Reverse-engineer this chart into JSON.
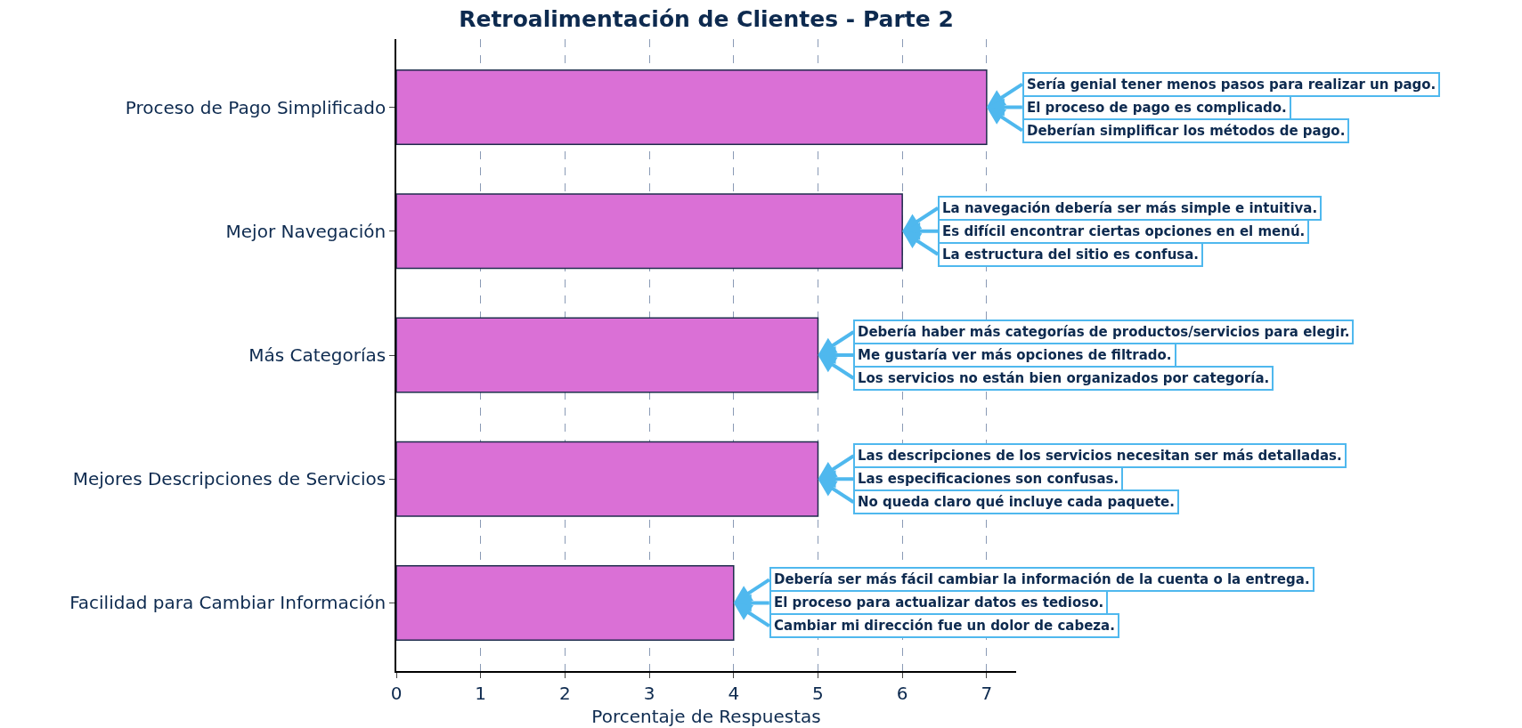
{
  "chart_data": {
    "type": "bar",
    "orientation": "horizontal",
    "title": "Retroalimentación de Clientes - Parte 2",
    "xlabel": "Porcentaje de Respuestas",
    "categories": [
      "Proceso de Pago Simplificado",
      "Mejor Navegación",
      "Más Categorías",
      "Mejores Descripciones de Servicios",
      "Facilidad para Cambiar Información"
    ],
    "values": [
      7,
      6,
      5,
      5,
      4
    ],
    "color": "#da70d6",
    "xlim": [
      0,
      7.35
    ],
    "xticks": [
      0,
      1,
      2,
      3,
      4,
      5,
      6,
      7
    ],
    "grid": "x",
    "annotations": [
      {
        "text": "Sería genial tener menos pasos para realizar un pago.",
        "x": 7,
        "y": "Proceso de Pago Simplificado"
      },
      {
        "text": "El proceso de pago es complicado.",
        "x": 7,
        "y": "Proceso de Pago Simplificado"
      },
      {
        "text": "Deberían simplificar los métodos de pago.",
        "x": 7,
        "y": "Proceso de Pago Simplificado"
      },
      {
        "text": "La navegación debería ser más simple e intuitiva.",
        "x": 6,
        "y": "Mejor Navegación"
      },
      {
        "text": "Es difícil encontrar ciertas opciones en el menú.",
        "x": 6,
        "y": "Mejor Navegación"
      },
      {
        "text": "La estructura del sitio es confusa.",
        "x": 6,
        "y": "Mejor Navegación"
      },
      {
        "text": "Debería haber más categorías de productos/servicios para elegir.",
        "x": 5,
        "y": "Más Categorías"
      },
      {
        "text": "Me gustaría ver más opciones de filtrado.",
        "x": 5,
        "y": "Más Categorías"
      },
      {
        "text": "Los servicios no están bien organizados por categoría.",
        "x": 5,
        "y": "Más Categorías"
      },
      {
        "text": "Las descripciones de los servicios necesitan ser más detalladas.",
        "x": 5,
        "y": "Mejores Descripciones de Servicios"
      },
      {
        "text": "Las especificaciones son confusas.",
        "x": 5,
        "y": "Mejores Descripciones de Servicios"
      },
      {
        "text": "No queda claro qué incluye cada paquete.",
        "x": 5,
        "y": "Mejores Descripciones de Servicios"
      },
      {
        "text": "Debería ser más fácil cambiar la información de la cuenta o la entrega.",
        "x": 4,
        "y": "Facilidad para Cambiar Información"
      },
      {
        "text": "El proceso para actualizar datos es tedioso.",
        "x": 4,
        "y": "Facilidad para Cambiar Información"
      },
      {
        "text": "Cambiar mi dirección fue un dolor de cabeza.",
        "x": 4,
        "y": "Facilidad para Cambiar Información"
      }
    ]
  }
}
